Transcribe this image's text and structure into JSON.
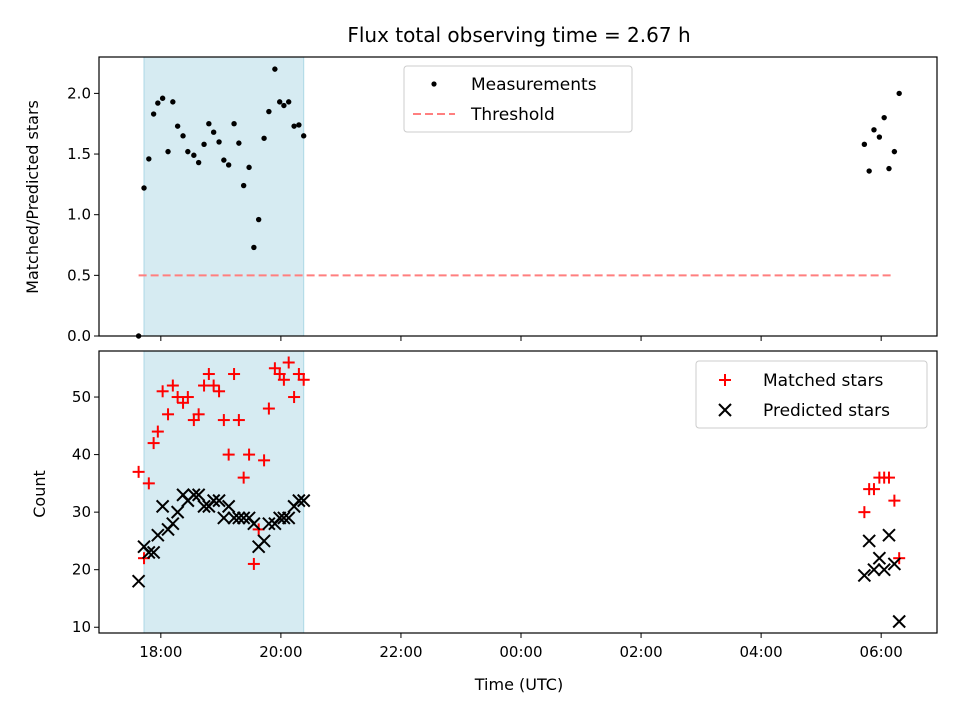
{
  "chart_data": {
    "title": "Flux total observing time = 2.67 h",
    "xlabel": "Time (UTC)",
    "x_tick_labels": [
      "18:00",
      "20:00",
      "22:00",
      "00:00",
      "02:00",
      "04:00",
      "06:00"
    ],
    "x_ticks_hours": [
      18,
      20,
      22,
      24,
      26,
      28,
      30
    ],
    "xlim_hours": [
      16.97,
      30.93
    ],
    "shaded_interval_hours": [
      17.72,
      20.38
    ],
    "shade_color": "#add8e6",
    "panels": [
      {
        "type": "scatter",
        "ylabel": "Matched/Predicted stars",
        "ylim": [
          0,
          2.3
        ],
        "y_ticks": [
          0.0,
          0.5,
          1.0,
          1.5,
          2.0
        ],
        "y_tick_labels": [
          "0.0",
          "0.5",
          "1.0",
          "1.5",
          "2.0"
        ],
        "legend_position": "top-center",
        "series": [
          {
            "name": "Measurements",
            "marker": "dot",
            "color": "#000000",
            "x": [
              17.63,
              17.72,
              17.8,
              17.88,
              17.95,
              18.03,
              18.12,
              18.2,
              18.28,
              18.37,
              18.45,
              18.55,
              18.63,
              18.72,
              18.8,
              18.88,
              18.97,
              19.05,
              19.13,
              19.22,
              19.3,
              19.38,
              19.47,
              19.55,
              19.63,
              19.72,
              19.8,
              19.9,
              19.98,
              20.05,
              20.13,
              20.22,
              20.3,
              20.38,
              29.72,
              29.8,
              29.88,
              29.97,
              30.05,
              30.13,
              30.22,
              30.3
            ],
            "y": [
              0.0,
              1.22,
              1.46,
              1.83,
              1.92,
              1.96,
              1.52,
              1.93,
              1.73,
              1.65,
              1.52,
              1.49,
              1.43,
              1.58,
              1.75,
              1.68,
              1.6,
              1.45,
              1.41,
              1.75,
              1.59,
              1.24,
              1.39,
              0.73,
              0.96,
              1.63,
              1.85,
              2.2,
              1.93,
              1.9,
              1.93,
              1.73,
              1.74,
              1.65,
              1.58,
              1.36,
              1.7,
              1.64,
              1.8,
              1.38,
              1.52,
              2.0
            ]
          },
          {
            "name": "Threshold",
            "marker": "dashed-line",
            "color": "#ff7f7f",
            "x": [
              17.63,
              30.22
            ],
            "y": [
              0.5,
              0.5
            ]
          }
        ]
      },
      {
        "type": "scatter",
        "ylabel": "Count",
        "ylim": [
          9,
          58
        ],
        "y_ticks": [
          10,
          20,
          30,
          40,
          50
        ],
        "y_tick_labels": [
          "10",
          "20",
          "30",
          "40",
          "50"
        ],
        "legend_position": "top-right",
        "series": [
          {
            "name": "Matched stars",
            "marker": "plus",
            "color": "#ff0000",
            "x": [
              17.63,
              17.72,
              17.8,
              17.88,
              17.95,
              18.03,
              18.12,
              18.2,
              18.28,
              18.37,
              18.45,
              18.55,
              18.63,
              18.72,
              18.8,
              18.88,
              18.97,
              19.05,
              19.13,
              19.22,
              19.3,
              19.38,
              19.47,
              19.55,
              19.63,
              19.72,
              19.8,
              19.9,
              19.98,
              20.05,
              20.13,
              20.22,
              20.3,
              20.38,
              29.72,
              29.8,
              29.88,
              29.97,
              30.05,
              30.13,
              30.22,
              30.3
            ],
            "y": [
              37,
              22,
              35,
              42,
              44,
              51,
              47,
              52,
              50,
              49,
              50,
              46,
              47,
              52,
              54,
              52,
              51,
              46,
              40,
              54,
              46,
              36,
              40,
              21,
              27,
              39,
              48,
              55,
              54,
              53,
              56,
              50,
              54,
              53,
              30,
              34,
              34,
              36,
              36,
              36,
              32,
              22
            ]
          },
          {
            "name": "Predicted stars",
            "marker": "x",
            "color": "#000000",
            "x": [
              17.63,
              17.72,
              17.8,
              17.88,
              17.95,
              18.03,
              18.12,
              18.2,
              18.28,
              18.37,
              18.45,
              18.55,
              18.63,
              18.72,
              18.8,
              18.88,
              18.97,
              19.05,
              19.13,
              19.22,
              19.3,
              19.38,
              19.47,
              19.55,
              19.63,
              19.72,
              19.8,
              19.9,
              19.98,
              20.05,
              20.13,
              20.22,
              20.3,
              20.38,
              29.72,
              29.8,
              29.88,
              29.97,
              30.05,
              30.13,
              30.22,
              30.3
            ],
            "y": [
              18,
              24,
              23,
              23,
              26,
              31,
              27,
              28,
              30,
              33,
              32,
              33,
              33,
              31,
              31,
              32,
              32,
              29,
              31,
              29,
              29,
              29,
              29,
              28,
              24,
              25,
              28,
              28,
              29,
              29,
              29,
              31,
              32,
              32,
              19,
              25,
              20,
              22,
              20,
              26,
              21,
              11
            ]
          }
        ]
      }
    ]
  }
}
